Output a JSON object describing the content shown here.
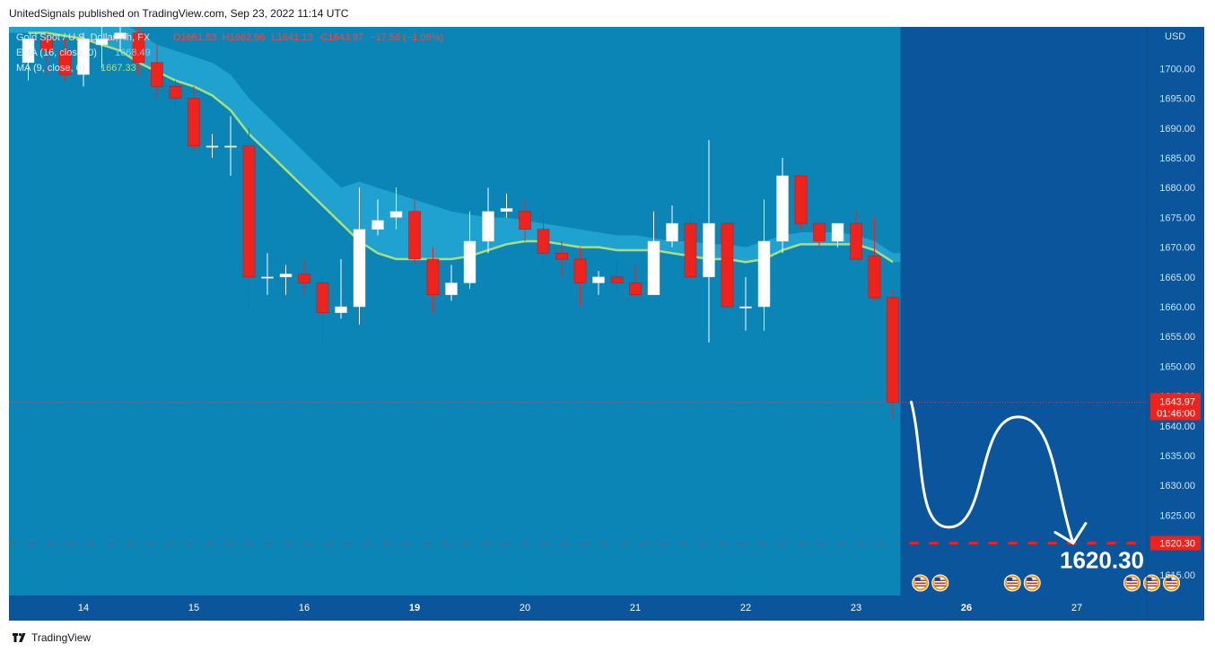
{
  "header": {
    "publisher_line": "UnitedSignals published on TradingView.com, Sep 23, 2022 11:14 UTC"
  },
  "footer": {
    "brand": "TradingView"
  },
  "legend": {
    "symbol": "Gold Spot / U.S. Dollar, 4h, FX",
    "ohlc": [
      {
        "k": "O",
        "v": "1661.53"
      },
      {
        "k": "H",
        "v": "1662.96"
      },
      {
        "k": "L",
        "v": "1641.13"
      },
      {
        "k": "C",
        "v": "1643.97"
      },
      {
        "k": "",
        "v": "−17.56 (−1.06%)"
      }
    ],
    "ema_label": "EMA (16, close, 0)",
    "ema_value": "1668.49",
    "ma_label": "MA (9, close, 0)",
    "ma_value": "1667.33"
  },
  "colors": {
    "background": "#0a559c",
    "area_fill": "#0b84b6",
    "ema_band": "#1fa2cf",
    "ma_line": "#a9e07a",
    "up_candle": "#ffffff",
    "down_candle": "#f0221c",
    "target_line": "#f0221c",
    "price_label_bg": "#f0221c"
  },
  "chart_data": {
    "type": "candlestick",
    "currency_label": "USD",
    "y_ticks": [
      "1615.00",
      "1620.00",
      "1625.00",
      "1630.00",
      "1635.00",
      "1640.00",
      "1645.00",
      "1650.00",
      "1655.00",
      "1660.00",
      "1665.00",
      "1670.00",
      "1675.00",
      "1680.00",
      "1685.00",
      "1690.00",
      "1695.00",
      "1700.00"
    ],
    "ylim": [
      1611.5,
      1707
    ],
    "x_ticks": [
      {
        "i": 3,
        "label": "14"
      },
      {
        "i": 9,
        "label": "15"
      },
      {
        "i": 15,
        "label": "16"
      },
      {
        "i": 21,
        "label": "19",
        "bold": true
      },
      {
        "i": 27,
        "label": "20"
      },
      {
        "i": 33,
        "label": "21"
      },
      {
        "i": 39,
        "label": "22"
      },
      {
        "i": 45,
        "label": "23"
      },
      {
        "i": 51,
        "label": "26",
        "bold": true
      },
      {
        "i": 57,
        "label": "27"
      }
    ],
    "candles": [
      {
        "o": 1701,
        "h": 1705,
        "l": 1698,
        "c": 1705
      },
      {
        "o": 1705,
        "h": 1706,
        "l": 1699,
        "c": 1703
      },
      {
        "o": 1703,
        "h": 1705,
        "l": 1698,
        "c": 1699
      },
      {
        "o": 1699,
        "h": 1706,
        "l": 1697,
        "c": 1705
      },
      {
        "o": 1704,
        "h": 1707,
        "l": 1700,
        "c": 1705
      },
      {
        "o": 1705,
        "h": 1707,
        "l": 1703,
        "c": 1706
      },
      {
        "o": 1706,
        "h": 1707,
        "l": 1699,
        "c": 1701
      },
      {
        "o": 1701,
        "h": 1704,
        "l": 1695,
        "c": 1697
      },
      {
        "o": 1697,
        "h": 1698,
        "l": 1693,
        "c": 1695
      },
      {
        "o": 1695,
        "h": 1697,
        "l": 1686,
        "c": 1687
      },
      {
        "o": 1687,
        "h": 1689,
        "l": 1685,
        "c": 1687
      },
      {
        "o": 1687,
        "h": 1692,
        "l": 1682,
        "c": 1687
      },
      {
        "o": 1687,
        "h": 1690,
        "l": 1660,
        "c": 1665
      },
      {
        "o": 1665,
        "h": 1669,
        "l": 1662,
        "c": 1665
      },
      {
        "o": 1665,
        "h": 1667,
        "l": 1662,
        "c": 1665.5
      },
      {
        "o": 1665.5,
        "h": 1668,
        "l": 1662,
        "c": 1664
      },
      {
        "o": 1664,
        "h": 1665,
        "l": 1654,
        "c": 1659
      },
      {
        "o": 1659,
        "h": 1668,
        "l": 1658,
        "c": 1660
      },
      {
        "o": 1660,
        "h": 1680,
        "l": 1657,
        "c": 1673
      },
      {
        "o": 1673,
        "h": 1678,
        "l": 1672,
        "c": 1674.5
      },
      {
        "o": 1675,
        "h": 1680,
        "l": 1673,
        "c": 1676
      },
      {
        "o": 1676,
        "h": 1678,
        "l": 1667,
        "c": 1668
      },
      {
        "o": 1668,
        "h": 1670,
        "l": 1659,
        "c": 1662
      },
      {
        "o": 1662,
        "h": 1667,
        "l": 1661,
        "c": 1664
      },
      {
        "o": 1664,
        "h": 1676,
        "l": 1663,
        "c": 1671
      },
      {
        "o": 1671,
        "h": 1680,
        "l": 1669,
        "c": 1676
      },
      {
        "o": 1676,
        "h": 1679,
        "l": 1675,
        "c": 1676.5
      },
      {
        "o": 1676,
        "h": 1678,
        "l": 1671,
        "c": 1673
      },
      {
        "o": 1673,
        "h": 1676,
        "l": 1667,
        "c": 1669
      },
      {
        "o": 1669,
        "h": 1671,
        "l": 1665,
        "c": 1668
      },
      {
        "o": 1668,
        "h": 1670,
        "l": 1660,
        "c": 1664
      },
      {
        "o": 1664,
        "h": 1666,
        "l": 1662,
        "c": 1665
      },
      {
        "o": 1665,
        "h": 1668,
        "l": 1662,
        "c": 1664
      },
      {
        "o": 1664,
        "h": 1667,
        "l": 1662,
        "c": 1662
      },
      {
        "o": 1662,
        "h": 1676,
        "l": 1662,
        "c": 1671
      },
      {
        "o": 1671,
        "h": 1677,
        "l": 1670,
        "c": 1674
      },
      {
        "o": 1674,
        "h": 1676,
        "l": 1665,
        "c": 1665
      },
      {
        "o": 1665,
        "h": 1688,
        "l": 1654,
        "c": 1674
      },
      {
        "o": 1674,
        "h": 1674,
        "l": 1660,
        "c": 1660
      },
      {
        "o": 1660,
        "h": 1665,
        "l": 1656,
        "c": 1660
      },
      {
        "o": 1660,
        "h": 1678,
        "l": 1656,
        "c": 1671
      },
      {
        "o": 1671,
        "h": 1685,
        "l": 1669,
        "c": 1682
      },
      {
        "o": 1682,
        "h": 1682,
        "l": 1673,
        "c": 1674
      },
      {
        "o": 1674,
        "h": 1674,
        "l": 1670,
        "c": 1671
      },
      {
        "o": 1671,
        "h": 1674,
        "l": 1670,
        "c": 1674
      },
      {
        "o": 1674,
        "h": 1676,
        "l": 1668,
        "c": 1668
      },
      {
        "o": 1668.5,
        "h": 1675,
        "l": 1661,
        "c": 1661.5
      },
      {
        "o": 1661.53,
        "h": 1662.96,
        "l": 1641.13,
        "c": 1643.97
      }
    ],
    "ma_line": [
      1706,
      1706,
      1705.5,
      1705,
      1704,
      1703,
      1701,
      1699.5,
      1698,
      1697,
      1695.5,
      1693,
      1689,
      1686,
      1683,
      1680,
      1677,
      1674,
      1671,
      1669,
      1668,
      1668,
      1668,
      1668,
      1668.5,
      1669.5,
      1670.5,
      1671,
      1671,
      1670.5,
      1670,
      1670,
      1669.5,
      1669.5,
      1669.5,
      1669,
      1668.5,
      1668,
      1668,
      1667.5,
      1668,
      1669.5,
      1670.5,
      1670.5,
      1670.5,
      1670.5,
      1669.5,
      1667.5
    ],
    "ema_upper": [
      1712,
      1712,
      1711,
      1710,
      1709,
      1708,
      1706,
      1704,
      1703,
      1702,
      1701,
      1699,
      1695,
      1692,
      1689,
      1686,
      1683,
      1680,
      1681,
      1680,
      1679,
      1678,
      1677,
      1676,
      1675.5,
      1675,
      1675,
      1674.5,
      1674,
      1673.5,
      1673,
      1672.5,
      1672,
      1672,
      1671.5,
      1671,
      1671,
      1670.5,
      1670.5,
      1670,
      1671,
      1672,
      1672.5,
      1672.5,
      1672.5,
      1672,
      1671,
      1669
    ],
    "last_price": 1643.97,
    "last_price_label": "1643.97",
    "countdown_label": "01:46:00",
    "target_price": 1620.3,
    "target_label": "1620.30",
    "target_big_label": "1620.30",
    "projection_path": [
      {
        "i": 48.0,
        "v": 1644
      },
      {
        "i": 50.2,
        "v": 1623
      },
      {
        "i": 53.8,
        "v": 1641.5
      },
      {
        "i": 56.8,
        "v": 1620.3
      }
    ],
    "event_groups": [
      {
        "i": 48.5,
        "count": 2
      },
      {
        "i": 53.5,
        "count": 2
      },
      {
        "i": 60.0,
        "count": 3
      }
    ],
    "grid": false
  }
}
